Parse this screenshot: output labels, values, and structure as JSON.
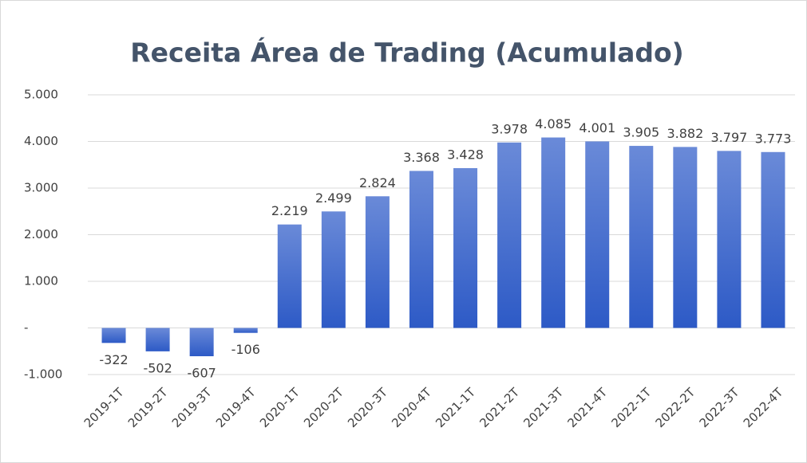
{
  "chart_data": {
    "type": "bar",
    "title": "Receita Área de Trading (Acumulado)",
    "categories": [
      "2019-1T",
      "2019-2T",
      "2019-3T",
      "2019-4T",
      "2020-1T",
      "2020-2T",
      "2020-3T",
      "2020-4T",
      "2021-1T",
      "2021-2T",
      "2021-3T",
      "2021-4T",
      "2022-1T",
      "2022-2T",
      "2022-3T",
      "2022-4T"
    ],
    "values": [
      -322,
      -502,
      -607,
      -106,
      2219,
      2499,
      2824,
      3368,
      3428,
      3978,
      4085,
      4001,
      3905,
      3882,
      3797,
      3773
    ],
    "value_labels": [
      "-322",
      "-502",
      "-607",
      "-106",
      "2.219",
      "2.499",
      "2.824",
      "3.368",
      "3.428",
      "3.978",
      "4.085",
      "4.001",
      "3.905",
      "3.882",
      "3.797",
      "3.773"
    ],
    "color": "#4472c4",
    "ylim": [
      -1000,
      5000
    ],
    "yticks": [
      {
        "value": -1000,
        "label": "-1.000"
      },
      {
        "value": 0,
        "label": "-"
      },
      {
        "value": 1000,
        "label": "1.000"
      },
      {
        "value": 2000,
        "label": "2.000"
      },
      {
        "value": 3000,
        "label": "3.000"
      },
      {
        "value": 4000,
        "label": "4.000"
      },
      {
        "value": 5000,
        "label": "5.000"
      }
    ],
    "grid": true
  }
}
